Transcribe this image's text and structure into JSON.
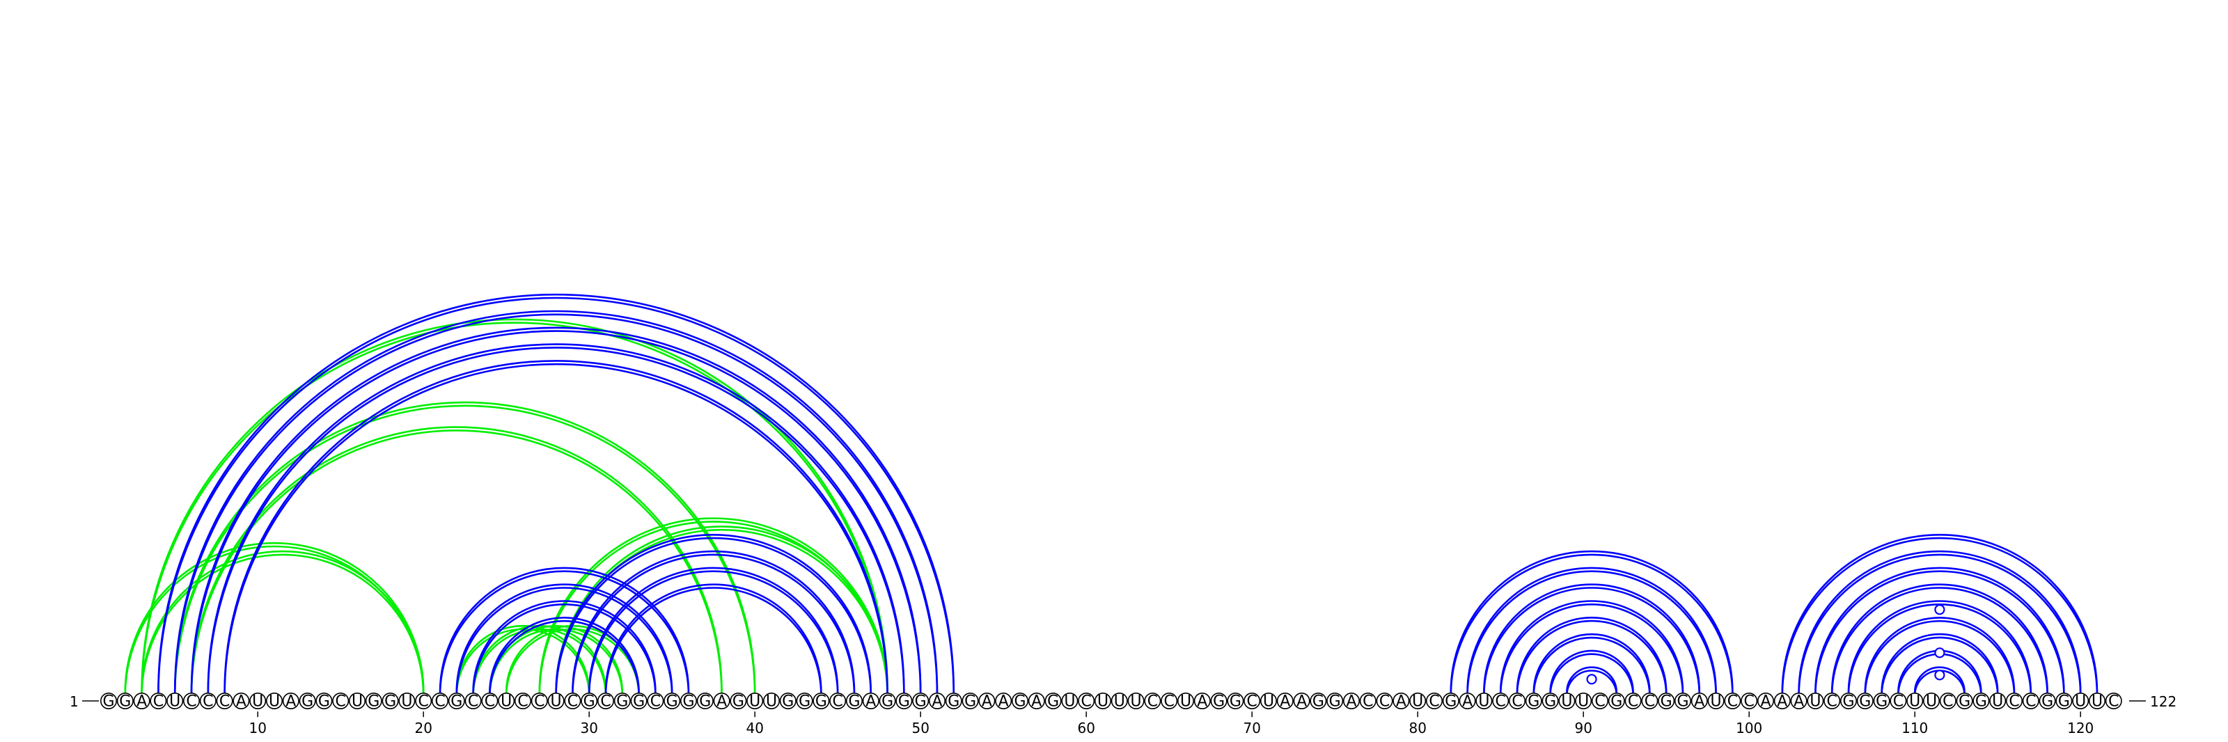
{
  "sequence": "GGACUCCCAUUAGGCUGGUCCGCCUCCUCGCGGCGGGAGUUGGGCGAGGGAGGAAGAGUCUUUCCUAGGCUAAGGACCAUCGAUCCGGUUCGCCGGAUCCAAAUCGGGCUUCGGUCCGGUUC",
  "length": 122,
  "start_label": "1",
  "end_label": "122",
  "tick_labels": [
    "10",
    "20",
    "30",
    "40",
    "50",
    "60",
    "70",
    "80",
    "90",
    "100",
    "110",
    "120"
  ],
  "colors": {
    "blue": "#0000ff",
    "green": "#00ee00",
    "text": "#000000"
  },
  "blue_pairs": [
    [
      4,
      52
    ],
    [
      5,
      51
    ],
    [
      6,
      50
    ],
    [
      7,
      49
    ],
    [
      8,
      48
    ],
    [
      21,
      36
    ],
    [
      22,
      35
    ],
    [
      23,
      34
    ],
    [
      24,
      33
    ],
    [
      28,
      47
    ],
    [
      29,
      46
    ],
    [
      30,
      45
    ],
    [
      31,
      44
    ],
    [
      82,
      99
    ],
    [
      83,
      98
    ],
    [
      84,
      97
    ],
    [
      85,
      96
    ],
    [
      86,
      95
    ],
    [
      87,
      94
    ],
    [
      88,
      93
    ],
    [
      89,
      92
    ],
    [
      102,
      121
    ],
    [
      103,
      120
    ],
    [
      104,
      119
    ],
    [
      105,
      118
    ],
    [
      106,
      117
    ],
    [
      107,
      116
    ],
    [
      108,
      115
    ],
    [
      109,
      114
    ],
    [
      110,
      113
    ]
  ],
  "green_pairs": [
    [
      2,
      20
    ],
    [
      3,
      20
    ],
    [
      3,
      48
    ],
    [
      5,
      40
    ],
    [
      6,
      38
    ],
    [
      22,
      30
    ],
    [
      23,
      31
    ],
    [
      24,
      32
    ],
    [
      25,
      33
    ],
    [
      27,
      48
    ],
    [
      28,
      48
    ]
  ],
  "loop_markers": [
    91,
    112,
    112,
    112
  ]
}
